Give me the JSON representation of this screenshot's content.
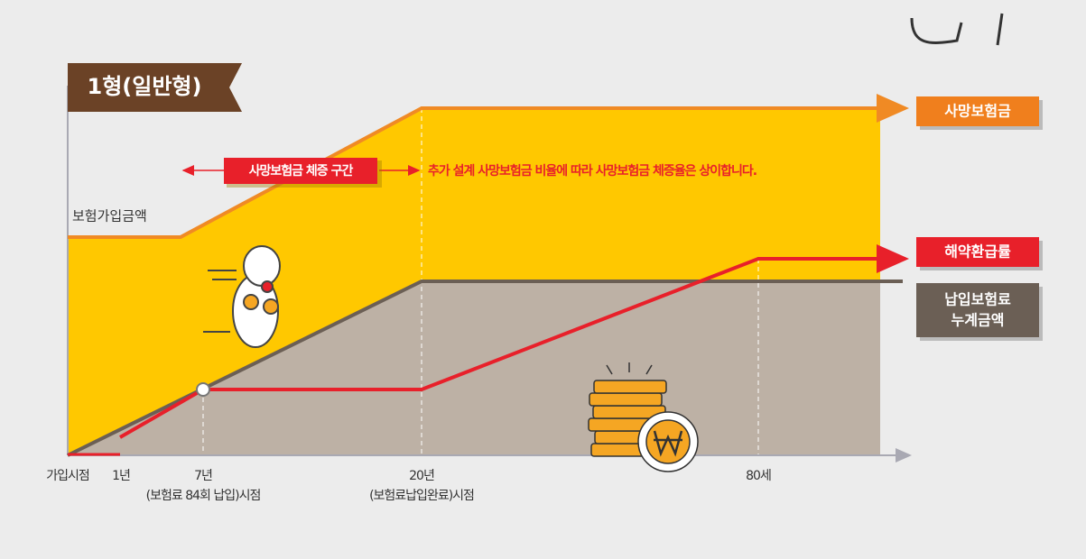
{
  "badge": "1형(일반형)",
  "y_axis_label": "보험가입금액",
  "range_label": "사망보험금 체증 구간",
  "note": "추가 설계 사망보험금 비율에 따라 사망보험금 체증율은 상이합니다.",
  "legend": {
    "death_benefit": "사망보험금",
    "surrender_rate": "해약환급률",
    "premium_total": [
      "납입보험료",
      "누계금액"
    ]
  },
  "x_labels": {
    "start": "가입시점",
    "year1": "1년",
    "year7": [
      "7년",
      "(보험료 84회 납입)시점"
    ],
    "year20": [
      "20년",
      "(보험료납입완료)시점"
    ],
    "age80": "80세"
  }
}
